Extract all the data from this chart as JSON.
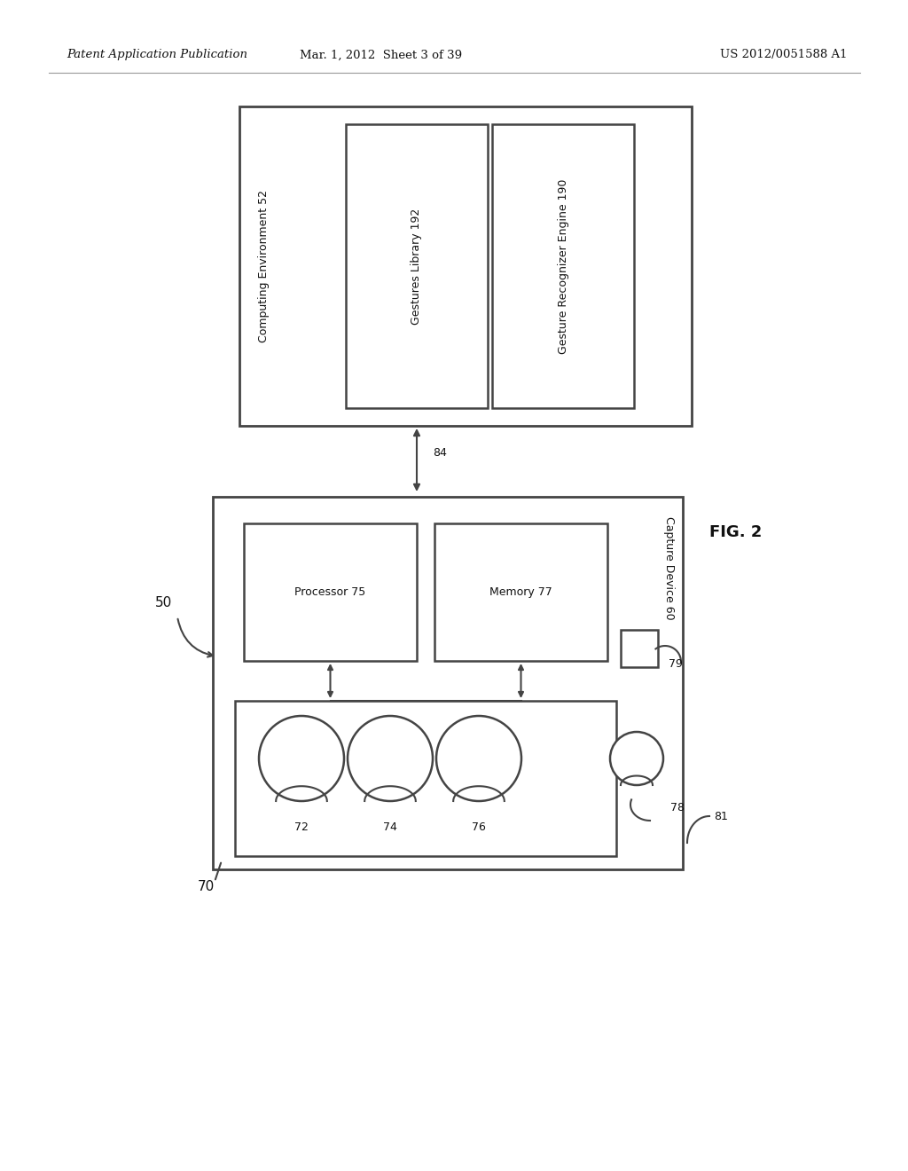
{
  "header_left": "Patent Application Publication",
  "header_mid": "Mar. 1, 2012  Sheet 3 of 39",
  "header_right": "US 2012/0051588 A1",
  "fig_label": "FIG. 2",
  "bg_color": "#ffffff",
  "line_color": "#444444",
  "text_color": "#111111",
  "comp_env_label": "Computing Environment 52",
  "gesture_lib_label": "Gestures Library 192",
  "gesture_rec_label": "Gesture Recognizer Engine 190",
  "arrow84_label": "84",
  "capture_label": "Capture Device 60",
  "capture_label_81": "81",
  "processor_label": "Processor 75",
  "memory_label": "Memory 77",
  "square79_label": "79",
  "circle72_label": "72",
  "circle74_label": "74",
  "circle76_label": "76",
  "circle78_label": "78",
  "label50": "50",
  "label70": "70"
}
